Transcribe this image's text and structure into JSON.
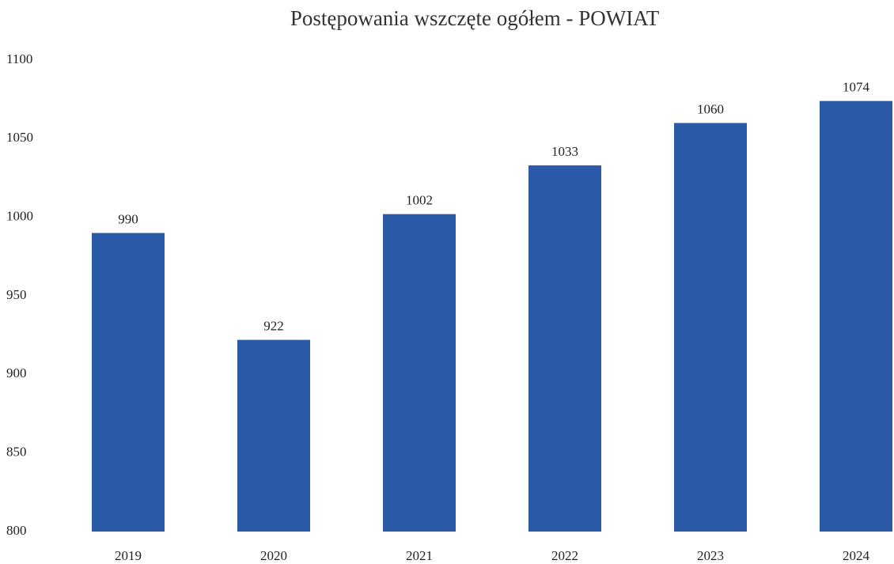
{
  "chart_data": {
    "type": "bar",
    "title": "Postępowania wszczęte ogółem - POWIAT",
    "categories": [
      "2019",
      "2020",
      "2021",
      "2022",
      "2023",
      "2024"
    ],
    "values": [
      990,
      922,
      1002,
      1033,
      1060,
      1074
    ],
    "color": "#2a5aa8",
    "ylim": [
      800,
      1100
    ],
    "yticks": [
      800,
      850,
      900,
      950,
      1000,
      1050,
      1100
    ],
    "grid": false
  }
}
